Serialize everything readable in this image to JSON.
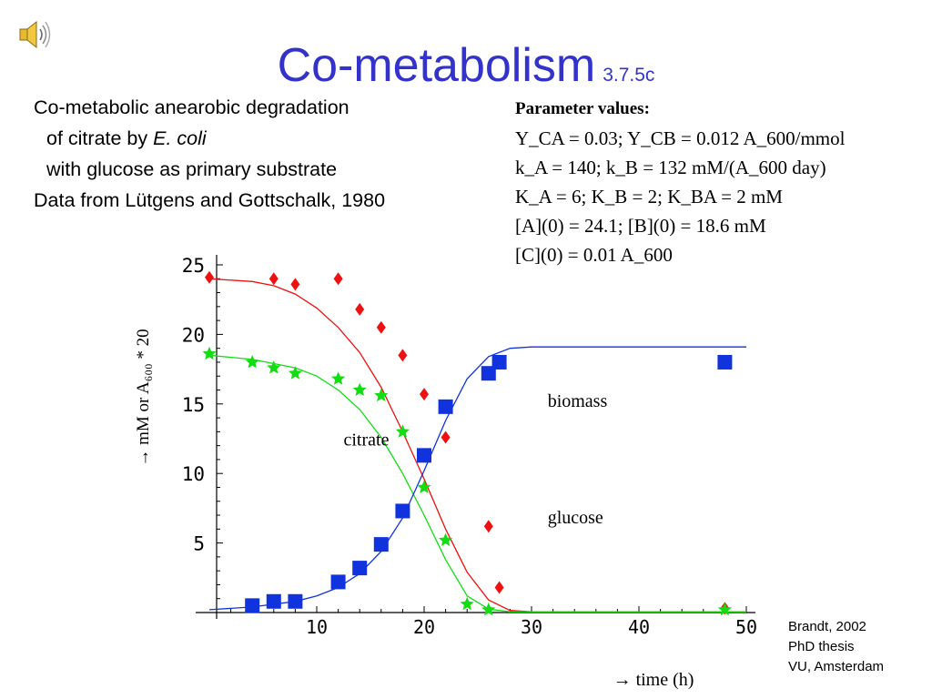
{
  "slide": {
    "title": "Co-metabolism",
    "section_number": "3.7.5c",
    "description": {
      "line1": "Co-metabolic anearobic degradation",
      "line2_prefix": "of citrate by ",
      "line2_italic": "E. coli",
      "line3": "with glucose as primary substrate",
      "line4": "Data from Lütgens and Gottschalk, 1980"
    },
    "parameters": {
      "heading": "Parameter values:",
      "lines": [
        "Y_CA = 0.03; Y_CB = 0.012 A_600/mmol",
        "k_A = 140; k_B = 132 mM/(A_600 day)",
        "K_A = 6; K_B = 2; K_BA = 2 mM",
        "[A](0) = 24.1; [B](0) = 18.6 mM",
        "[C](0) = 0.01 A_600"
      ]
    },
    "credit": [
      "Brandt, 2002",
      "PhD thesis",
      "VU, Amsterdam"
    ],
    "speaker_icon": "speaker-icon",
    "colors": {
      "title": "#3333cc",
      "citrate": "#ee1111",
      "glucose": "#11dd11",
      "biomass": "#1133dd"
    }
  },
  "chart_data": {
    "type": "scatter",
    "xlabel": "→ time (h)",
    "ylabel": "→ mM or A₆₀₀ * 20",
    "xlim": [
      0,
      50
    ],
    "ylim": [
      0,
      25
    ],
    "xticks": [
      10,
      20,
      30,
      40,
      50
    ],
    "yticks": [
      5,
      10,
      15,
      20,
      25
    ],
    "grid": false,
    "series": [
      {
        "name": "citrate",
        "color": "#ee1111",
        "marker": "diamond",
        "points": [
          [
            0,
            24.1
          ],
          [
            6,
            24.0
          ],
          [
            8,
            23.6
          ],
          [
            12,
            24.0
          ],
          [
            14,
            21.8
          ],
          [
            16,
            20.5
          ],
          [
            18,
            18.5
          ],
          [
            20,
            15.7
          ],
          [
            22,
            12.6
          ],
          [
            26,
            6.2
          ],
          [
            27,
            1.8
          ],
          [
            48,
            0.3
          ]
        ],
        "fit": [
          [
            0,
            24.0
          ],
          [
            4,
            23.8
          ],
          [
            6,
            23.5
          ],
          [
            8,
            22.9
          ],
          [
            10,
            21.9
          ],
          [
            12,
            20.5
          ],
          [
            14,
            18.7
          ],
          [
            16,
            16.2
          ],
          [
            18,
            13.0
          ],
          [
            20,
            9.6
          ],
          [
            22,
            6.0
          ],
          [
            24,
            2.9
          ],
          [
            26,
            0.9
          ],
          [
            28,
            0.15
          ],
          [
            30,
            0.05
          ],
          [
            50,
            0.05
          ]
        ]
      },
      {
        "name": "glucose",
        "color": "#11dd11",
        "marker": "star",
        "points": [
          [
            0,
            18.6
          ],
          [
            4,
            18.0
          ],
          [
            6,
            17.6
          ],
          [
            8,
            17.2
          ],
          [
            12,
            16.8
          ],
          [
            14,
            16.0
          ],
          [
            16,
            15.6
          ],
          [
            18,
            13.0
          ],
          [
            20,
            9.0
          ],
          [
            22,
            5.2
          ],
          [
            24,
            0.6
          ],
          [
            26,
            0.2
          ],
          [
            48,
            0.2
          ]
        ],
        "fit": [
          [
            0,
            18.5
          ],
          [
            4,
            18.2
          ],
          [
            8,
            17.6
          ],
          [
            10,
            17.0
          ],
          [
            12,
            16.0
          ],
          [
            14,
            14.6
          ],
          [
            16,
            12.6
          ],
          [
            18,
            10.0
          ],
          [
            20,
            7.0
          ],
          [
            22,
            3.8
          ],
          [
            24,
            1.2
          ],
          [
            26,
            0.25
          ],
          [
            28,
            0.05
          ],
          [
            50,
            0.05
          ]
        ]
      },
      {
        "name": "biomass",
        "color": "#1133dd",
        "marker": "square",
        "points": [
          [
            4,
            0.5
          ],
          [
            6,
            0.8
          ],
          [
            8,
            0.8
          ],
          [
            12,
            2.2
          ],
          [
            14,
            3.2
          ],
          [
            16,
            4.9
          ],
          [
            18,
            7.3
          ],
          [
            20,
            11.3
          ],
          [
            22,
            14.8
          ],
          [
            26,
            17.2
          ],
          [
            27,
            18.0
          ],
          [
            48,
            18.0
          ]
        ],
        "fit": [
          [
            0,
            0.2
          ],
          [
            4,
            0.4
          ],
          [
            8,
            0.8
          ],
          [
            10,
            1.2
          ],
          [
            12,
            1.8
          ],
          [
            14,
            2.8
          ],
          [
            16,
            4.4
          ],
          [
            18,
            6.8
          ],
          [
            20,
            10.2
          ],
          [
            22,
            13.8
          ],
          [
            24,
            16.8
          ],
          [
            26,
            18.4
          ],
          [
            28,
            19.0
          ],
          [
            30,
            19.1
          ],
          [
            50,
            19.1
          ]
        ]
      }
    ],
    "annotations": [
      {
        "text": "biomass",
        "x": 31.5,
        "y": 14.8
      },
      {
        "text": "citrate",
        "x": 12.5,
        "y": 12.0
      },
      {
        "text": "glucose",
        "x": 31.5,
        "y": 6.4
      }
    ]
  }
}
